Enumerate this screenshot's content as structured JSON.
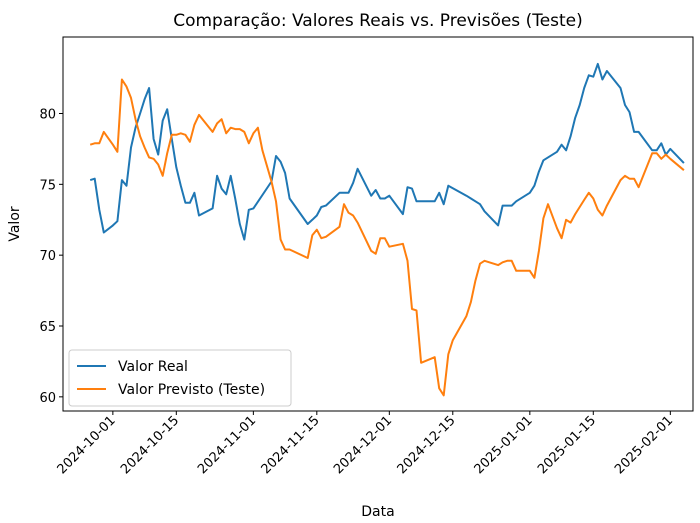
{
  "chart_data": {
    "type": "line",
    "title": "Comparação: Valores Reais vs. Previsões (Teste)",
    "xlabel": "Data",
    "ylabel": "Valor",
    "x_axis_type": "date",
    "xlim": [
      "2024-09-20",
      "2025-02-06"
    ],
    "ylim": [
      59,
      85.4
    ],
    "x_ticks": [
      "2024-10-01",
      "2024-10-15",
      "2024-11-01",
      "2024-11-15",
      "2024-12-01",
      "2024-12-15",
      "2025-01-01",
      "2025-01-15",
      "2025-02-01"
    ],
    "y_ticks": [
      60,
      65,
      70,
      75,
      80
    ],
    "grid": false,
    "legend_position": "lower-left",
    "series": [
      {
        "name": "Valor Real",
        "color": "#1f77b4",
        "points": [
          [
            "2024-09-26",
            75.3
          ],
          [
            "2024-09-27",
            75.4
          ],
          [
            "2024-09-28",
            73.2
          ],
          [
            "2024-09-29",
            71.6
          ],
          [
            "2024-10-01",
            72.1
          ],
          [
            "2024-10-02",
            72.4
          ],
          [
            "2024-10-03",
            75.3
          ],
          [
            "2024-10-04",
            74.9
          ],
          [
            "2024-10-05",
            77.6
          ],
          [
            "2024-10-06",
            79.0
          ],
          [
            "2024-10-07",
            80.0
          ],
          [
            "2024-10-08",
            81.0
          ],
          [
            "2024-10-09",
            81.8
          ],
          [
            "2024-10-10",
            78.2
          ],
          [
            "2024-10-11",
            77.1
          ],
          [
            "2024-10-12",
            79.5
          ],
          [
            "2024-10-13",
            80.3
          ],
          [
            "2024-10-14",
            78.2
          ],
          [
            "2024-10-15",
            76.2
          ],
          [
            "2024-10-16",
            74.9
          ],
          [
            "2024-10-17",
            73.7
          ],
          [
            "2024-10-18",
            73.7
          ],
          [
            "2024-10-19",
            74.4
          ],
          [
            "2024-10-20",
            72.8
          ],
          [
            "2024-10-23",
            73.3
          ],
          [
            "2024-10-24",
            75.6
          ],
          [
            "2024-10-25",
            74.7
          ],
          [
            "2024-10-26",
            74.3
          ],
          [
            "2024-10-27",
            75.6
          ],
          [
            "2024-10-28",
            74.0
          ],
          [
            "2024-10-29",
            72.2
          ],
          [
            "2024-10-30",
            71.1
          ],
          [
            "2024-10-31",
            73.2
          ],
          [
            "2024-11-01",
            73.3
          ],
          [
            "2024-11-05",
            75.2
          ],
          [
            "2024-11-06",
            77.0
          ],
          [
            "2024-11-07",
            76.6
          ],
          [
            "2024-11-08",
            75.8
          ],
          [
            "2024-11-09",
            74.0
          ],
          [
            "2024-11-13",
            72.2
          ],
          [
            "2024-11-14",
            72.5
          ],
          [
            "2024-11-15",
            72.8
          ],
          [
            "2024-11-16",
            73.4
          ],
          [
            "2024-11-17",
            73.5
          ],
          [
            "2024-11-20",
            74.4
          ],
          [
            "2024-11-21",
            74.4
          ],
          [
            "2024-11-22",
            74.4
          ],
          [
            "2024-11-23",
            75.1
          ],
          [
            "2024-11-24",
            76.1
          ],
          [
            "2024-11-27",
            74.2
          ],
          [
            "2024-11-28",
            74.6
          ],
          [
            "2024-11-29",
            74.0
          ],
          [
            "2024-11-30",
            74.0
          ],
          [
            "2024-12-01",
            74.2
          ],
          [
            "2024-12-04",
            72.9
          ],
          [
            "2024-12-05",
            74.8
          ],
          [
            "2024-12-06",
            74.7
          ],
          [
            "2024-12-07",
            73.8
          ],
          [
            "2024-12-11",
            73.8
          ],
          [
            "2024-12-12",
            74.4
          ],
          [
            "2024-12-13",
            73.6
          ],
          [
            "2024-12-14",
            74.9
          ],
          [
            "2024-12-18",
            74.2
          ],
          [
            "2024-12-19",
            74.0
          ],
          [
            "2024-12-20",
            73.8
          ],
          [
            "2024-12-21",
            73.6
          ],
          [
            "2024-12-22",
            73.1
          ],
          [
            "2024-12-25",
            72.1
          ],
          [
            "2024-12-26",
            73.5
          ],
          [
            "2024-12-27",
            73.5
          ],
          [
            "2024-12-28",
            73.5
          ],
          [
            "2024-12-29",
            73.8
          ],
          [
            "2025-01-01",
            74.4
          ],
          [
            "2025-01-02",
            74.9
          ],
          [
            "2025-01-03",
            75.9
          ],
          [
            "2025-01-04",
            76.7
          ],
          [
            "2025-01-07",
            77.3
          ],
          [
            "2025-01-08",
            77.8
          ],
          [
            "2025-01-09",
            77.4
          ],
          [
            "2025-01-10",
            78.4
          ],
          [
            "2025-01-11",
            79.7
          ],
          [
            "2025-01-12",
            80.6
          ],
          [
            "2025-01-13",
            81.8
          ],
          [
            "2025-01-14",
            82.7
          ],
          [
            "2025-01-15",
            82.6
          ],
          [
            "2025-01-16",
            83.5
          ],
          [
            "2025-01-17",
            82.4
          ],
          [
            "2025-01-18",
            83.0
          ],
          [
            "2025-01-21",
            81.8
          ],
          [
            "2025-01-22",
            80.6
          ],
          [
            "2025-01-23",
            80.1
          ],
          [
            "2025-01-24",
            78.7
          ],
          [
            "2025-01-25",
            78.7
          ],
          [
            "2025-01-28",
            77.4
          ],
          [
            "2025-01-29",
            77.4
          ],
          [
            "2025-01-30",
            77.9
          ],
          [
            "2025-01-31",
            77.1
          ],
          [
            "2025-02-01",
            77.5
          ],
          [
            "2025-02-04",
            76.5
          ]
        ]
      },
      {
        "name": "Valor Previsto (Teste)",
        "color": "#ff7f0e",
        "points": [
          [
            "2024-09-26",
            77.8
          ],
          [
            "2024-09-27",
            77.9
          ],
          [
            "2024-09-28",
            77.9
          ],
          [
            "2024-09-29",
            78.7
          ],
          [
            "2024-10-01",
            77.8
          ],
          [
            "2024-10-02",
            77.3
          ],
          [
            "2024-10-03",
            82.4
          ],
          [
            "2024-10-04",
            81.9
          ],
          [
            "2024-10-05",
            81.1
          ],
          [
            "2024-10-06",
            79.6
          ],
          [
            "2024-10-07",
            78.4
          ],
          [
            "2024-10-08",
            77.6
          ],
          [
            "2024-10-09",
            76.9
          ],
          [
            "2024-10-10",
            76.8
          ],
          [
            "2024-10-11",
            76.4
          ],
          [
            "2024-10-12",
            75.6
          ],
          [
            "2024-10-13",
            77.2
          ],
          [
            "2024-10-14",
            78.5
          ],
          [
            "2024-10-15",
            78.5
          ],
          [
            "2024-10-16",
            78.6
          ],
          [
            "2024-10-17",
            78.5
          ],
          [
            "2024-10-18",
            78.0
          ],
          [
            "2024-10-19",
            79.2
          ],
          [
            "2024-10-20",
            79.9
          ],
          [
            "2024-10-23",
            78.7
          ],
          [
            "2024-10-24",
            79.3
          ],
          [
            "2024-10-25",
            79.6
          ],
          [
            "2024-10-26",
            78.6
          ],
          [
            "2024-10-27",
            79.0
          ],
          [
            "2024-10-28",
            78.9
          ],
          [
            "2024-10-29",
            78.9
          ],
          [
            "2024-10-30",
            78.7
          ],
          [
            "2024-10-31",
            77.9
          ],
          [
            "2024-11-01",
            78.6
          ],
          [
            "2024-11-02",
            79.0
          ],
          [
            "2024-11-03",
            77.4
          ],
          [
            "2024-11-05",
            75.2
          ],
          [
            "2024-11-06",
            73.8
          ],
          [
            "2024-11-07",
            71.1
          ],
          [
            "2024-11-08",
            70.4
          ],
          [
            "2024-11-09",
            70.4
          ],
          [
            "2024-11-13",
            69.8
          ],
          [
            "2024-11-14",
            71.4
          ],
          [
            "2024-11-15",
            71.8
          ],
          [
            "2024-11-16",
            71.2
          ],
          [
            "2024-11-17",
            71.3
          ],
          [
            "2024-11-20",
            72.0
          ],
          [
            "2024-11-21",
            73.6
          ],
          [
            "2024-11-22",
            73.0
          ],
          [
            "2024-11-23",
            72.8
          ],
          [
            "2024-11-24",
            72.3
          ],
          [
            "2024-11-27",
            70.3
          ],
          [
            "2024-11-28",
            70.1
          ],
          [
            "2024-11-29",
            71.2
          ],
          [
            "2024-11-30",
            71.2
          ],
          [
            "2024-12-01",
            70.6
          ],
          [
            "2024-12-04",
            70.8
          ],
          [
            "2024-12-05",
            69.6
          ],
          [
            "2024-12-06",
            66.2
          ],
          [
            "2024-12-07",
            66.1
          ],
          [
            "2024-12-08",
            62.4
          ],
          [
            "2024-12-11",
            62.8
          ],
          [
            "2024-12-12",
            60.6
          ],
          [
            "2024-12-13",
            60.1
          ],
          [
            "2024-12-14",
            63.0
          ],
          [
            "2024-12-15",
            64.0
          ],
          [
            "2024-12-18",
            65.7
          ],
          [
            "2024-12-19",
            66.7
          ],
          [
            "2024-12-20",
            68.2
          ],
          [
            "2024-12-21",
            69.4
          ],
          [
            "2024-12-22",
            69.6
          ],
          [
            "2024-12-25",
            69.3
          ],
          [
            "2024-12-26",
            69.5
          ],
          [
            "2024-12-27",
            69.6
          ],
          [
            "2024-12-28",
            69.6
          ],
          [
            "2024-12-29",
            68.9
          ],
          [
            "2025-01-01",
            68.9
          ],
          [
            "2025-01-02",
            68.4
          ],
          [
            "2025-01-03",
            70.3
          ],
          [
            "2025-01-04",
            72.6
          ],
          [
            "2025-01-05",
            73.6
          ],
          [
            "2025-01-07",
            71.9
          ],
          [
            "2025-01-08",
            71.2
          ],
          [
            "2025-01-09",
            72.5
          ],
          [
            "2025-01-10",
            72.3
          ],
          [
            "2025-01-11",
            72.9
          ],
          [
            "2025-01-12",
            73.4
          ],
          [
            "2025-01-13",
            73.9
          ],
          [
            "2025-01-14",
            74.4
          ],
          [
            "2025-01-15",
            74.0
          ],
          [
            "2025-01-16",
            73.2
          ],
          [
            "2025-01-17",
            72.8
          ],
          [
            "2025-01-18",
            73.5
          ],
          [
            "2025-01-21",
            75.3
          ],
          [
            "2025-01-22",
            75.6
          ],
          [
            "2025-01-23",
            75.4
          ],
          [
            "2025-01-24",
            75.4
          ],
          [
            "2025-01-25",
            74.8
          ],
          [
            "2025-01-28",
            77.2
          ],
          [
            "2025-01-29",
            77.2
          ],
          [
            "2025-01-30",
            76.8
          ],
          [
            "2025-01-31",
            77.1
          ],
          [
            "2025-02-01",
            76.8
          ],
          [
            "2025-02-04",
            76.0
          ]
        ]
      }
    ]
  }
}
